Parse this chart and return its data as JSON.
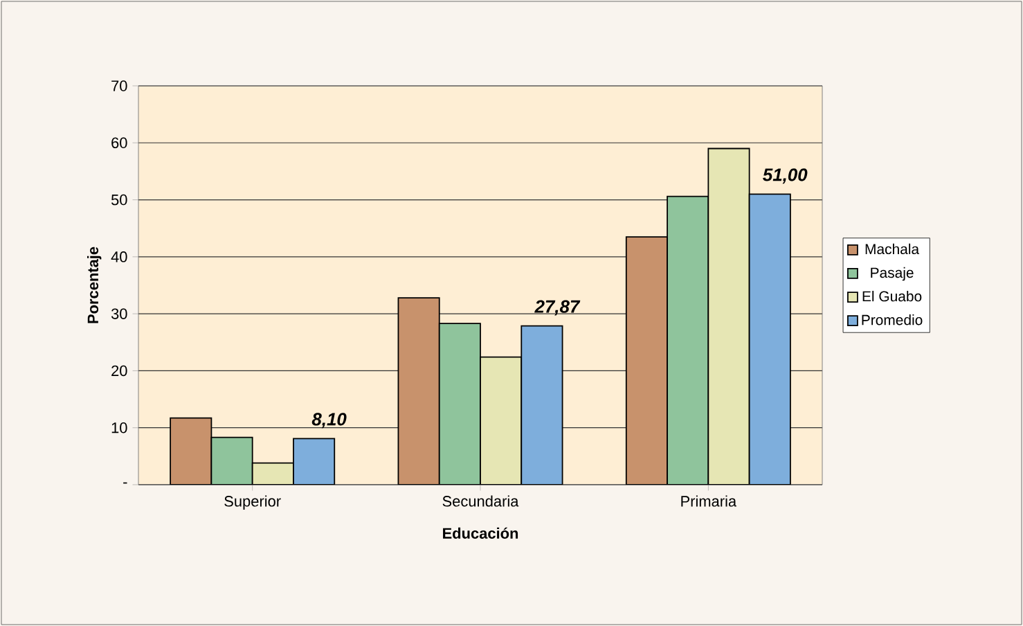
{
  "chart_data": {
    "type": "bar",
    "xlabel": "Educación",
    "ylabel": "Porcentaje",
    "categories": [
      "Superior",
      "Secundaria",
      "Primaria"
    ],
    "series": [
      {
        "name": "Machala",
        "color": "#c8926c",
        "values": [
          11.7,
          32.8,
          43.5
        ]
      },
      {
        "name": "Pasaje",
        "color": "#8fc49c",
        "values": [
          8.3,
          28.3,
          50.6
        ]
      },
      {
        "name": "El Guabo",
        "color": "#e6e6b4",
        "values": [
          3.8,
          22.4,
          59.0
        ]
      },
      {
        "name": "Promedio",
        "color": "#7eaedc",
        "values": [
          8.1,
          27.87,
          51.0
        ],
        "value_labels": [
          "8,10",
          "27,87",
          "51,00"
        ]
      }
    ],
    "ylim": [
      0,
      70
    ],
    "yticks": [
      {
        "value": 0,
        "label": "-"
      },
      10,
      20,
      30,
      40,
      50,
      60,
      70
    ],
    "grid": "y",
    "legend": "right"
  }
}
